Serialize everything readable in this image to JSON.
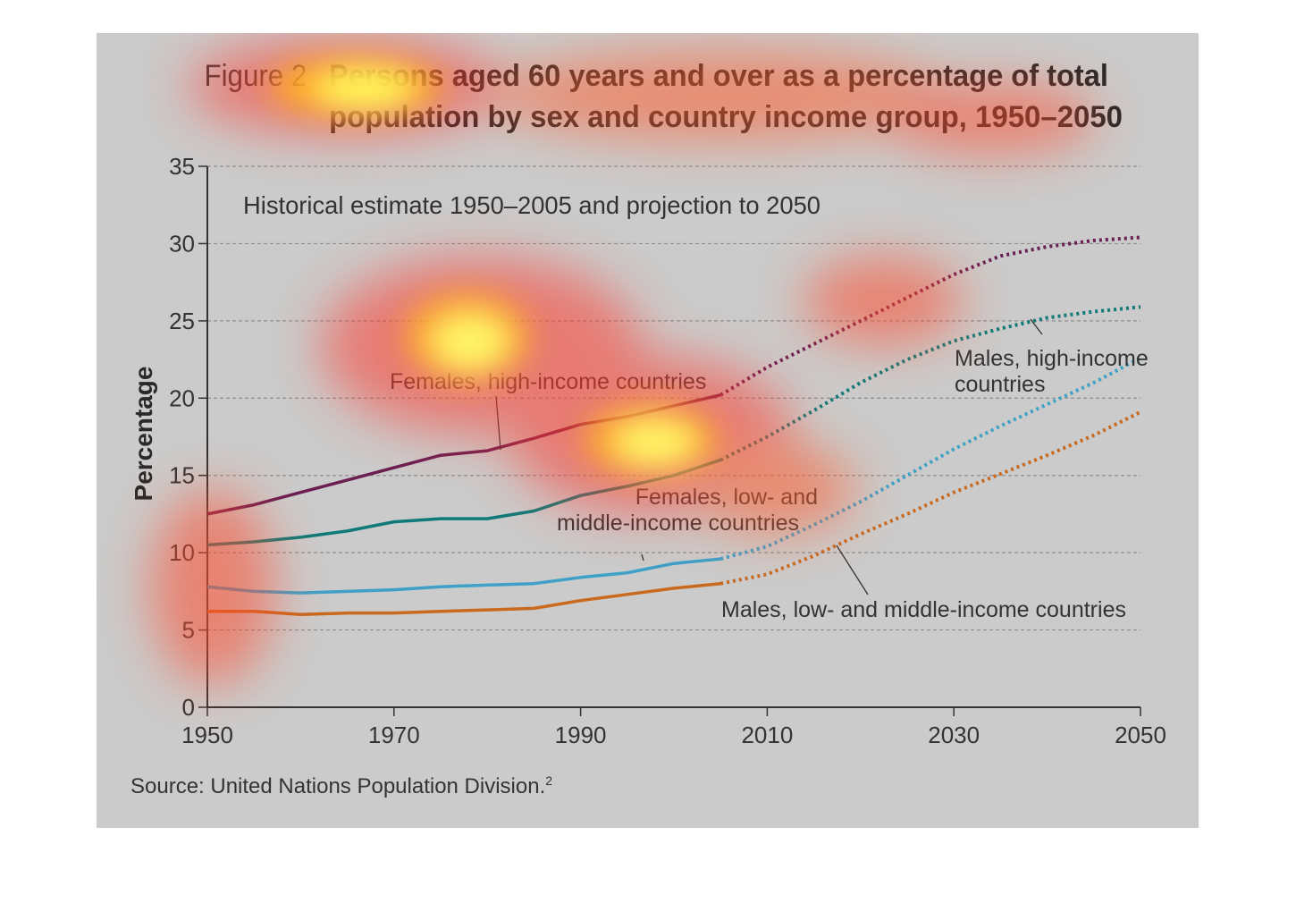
{
  "figure_label": "Figure 2",
  "title_line1": "Persons aged 60 years and over as a percentage of total",
  "title_line2": "population by sex and country income group, 1950–2050",
  "subtitle": "Historical estimate 1950–2005 and projection to 2050",
  "source": "Source: United Nations Population Division.",
  "source_sup": "2",
  "chart_data": {
    "type": "line",
    "title": "Persons aged 60 years and over as a percentage of total population by sex and country income group, 1950–2050",
    "subtitle": "Historical estimate 1950–2005 and projection to 2050",
    "xlabel": "",
    "ylabel": "Percentage",
    "xlim": [
      1950,
      2050
    ],
    "ylim": [
      0,
      35
    ],
    "xticks": [
      1950,
      1970,
      1990,
      2010,
      2030,
      2050
    ],
    "yticks": [
      0,
      5,
      10,
      15,
      20,
      25,
      30,
      35
    ],
    "grid": "horizontal dashed",
    "projection_start": 2005,
    "series": [
      {
        "name": "Females, high-income countries",
        "color": "#6b1f52",
        "points": [
          [
            1950,
            12.5
          ],
          [
            1955,
            13.1
          ],
          [
            1960,
            13.9
          ],
          [
            1965,
            14.7
          ],
          [
            1970,
            15.5
          ],
          [
            1975,
            16.3
          ],
          [
            1980,
            16.6
          ],
          [
            1985,
            17.4
          ],
          [
            1990,
            18.3
          ],
          [
            1995,
            18.8
          ],
          [
            2000,
            19.5
          ],
          [
            2005,
            20.2
          ],
          [
            2010,
            22.0
          ],
          [
            2015,
            23.5
          ],
          [
            2020,
            25.0
          ],
          [
            2025,
            26.5
          ],
          [
            2030,
            28.0
          ],
          [
            2035,
            29.2
          ],
          [
            2040,
            29.8
          ],
          [
            2045,
            30.2
          ],
          [
            2050,
            30.4
          ]
        ]
      },
      {
        "name": "Males, high-income countries",
        "color": "#0f7a78",
        "points": [
          [
            1950,
            10.5
          ],
          [
            1955,
            10.7
          ],
          [
            1960,
            11.0
          ],
          [
            1965,
            11.4
          ],
          [
            1970,
            12.0
          ],
          [
            1975,
            12.2
          ],
          [
            1980,
            12.2
          ],
          [
            1985,
            12.7
          ],
          [
            1990,
            13.7
          ],
          [
            1995,
            14.3
          ],
          [
            2000,
            15.0
          ],
          [
            2005,
            16.0
          ],
          [
            2010,
            17.5
          ],
          [
            2015,
            19.2
          ],
          [
            2020,
            21.0
          ],
          [
            2025,
            22.5
          ],
          [
            2030,
            23.7
          ],
          [
            2035,
            24.5
          ],
          [
            2040,
            25.2
          ],
          [
            2045,
            25.6
          ],
          [
            2050,
            25.9
          ]
        ]
      },
      {
        "name": "Females, low- and middle-income countries",
        "color": "#3fa0c8",
        "points": [
          [
            1950,
            7.8
          ],
          [
            1955,
            7.5
          ],
          [
            1960,
            7.4
          ],
          [
            1965,
            7.5
          ],
          [
            1970,
            7.6
          ],
          [
            1975,
            7.8
          ],
          [
            1980,
            7.9
          ],
          [
            1985,
            8.0
          ],
          [
            1990,
            8.4
          ],
          [
            1995,
            8.7
          ],
          [
            2000,
            9.3
          ],
          [
            2005,
            9.6
          ],
          [
            2010,
            10.4
          ],
          [
            2015,
            11.8
          ],
          [
            2020,
            13.3
          ],
          [
            2025,
            15.0
          ],
          [
            2030,
            16.7
          ],
          [
            2035,
            18.2
          ],
          [
            2040,
            19.6
          ],
          [
            2045,
            21.0
          ],
          [
            2050,
            22.6
          ]
        ]
      },
      {
        "name": "Males, low- and middle-income countries",
        "color": "#c8691e",
        "points": [
          [
            1950,
            6.2
          ],
          [
            1955,
            6.2
          ],
          [
            1960,
            6.0
          ],
          [
            1965,
            6.1
          ],
          [
            1970,
            6.1
          ],
          [
            1975,
            6.2
          ],
          [
            1980,
            6.3
          ],
          [
            1985,
            6.4
          ],
          [
            1990,
            6.9
          ],
          [
            1995,
            7.3
          ],
          [
            2000,
            7.7
          ],
          [
            2005,
            8.0
          ],
          [
            2010,
            8.6
          ],
          [
            2015,
            9.8
          ],
          [
            2020,
            11.2
          ],
          [
            2025,
            12.5
          ],
          [
            2030,
            13.9
          ],
          [
            2035,
            15.1
          ],
          [
            2040,
            16.3
          ],
          [
            2045,
            17.6
          ],
          [
            2050,
            19.1
          ]
        ]
      }
    ],
    "annotations": [
      {
        "text_lines": [
          "Females, high-income countries"
        ],
        "series": 0
      },
      {
        "text_lines": [
          "Males, high-income",
          "countries"
        ],
        "series": 1
      },
      {
        "text_lines": [
          "Females, low- and",
          "middle-income countries"
        ],
        "series": 2
      },
      {
        "text_lines": [
          "Males, low- and middle-income countries"
        ],
        "series": 3
      }
    ]
  }
}
